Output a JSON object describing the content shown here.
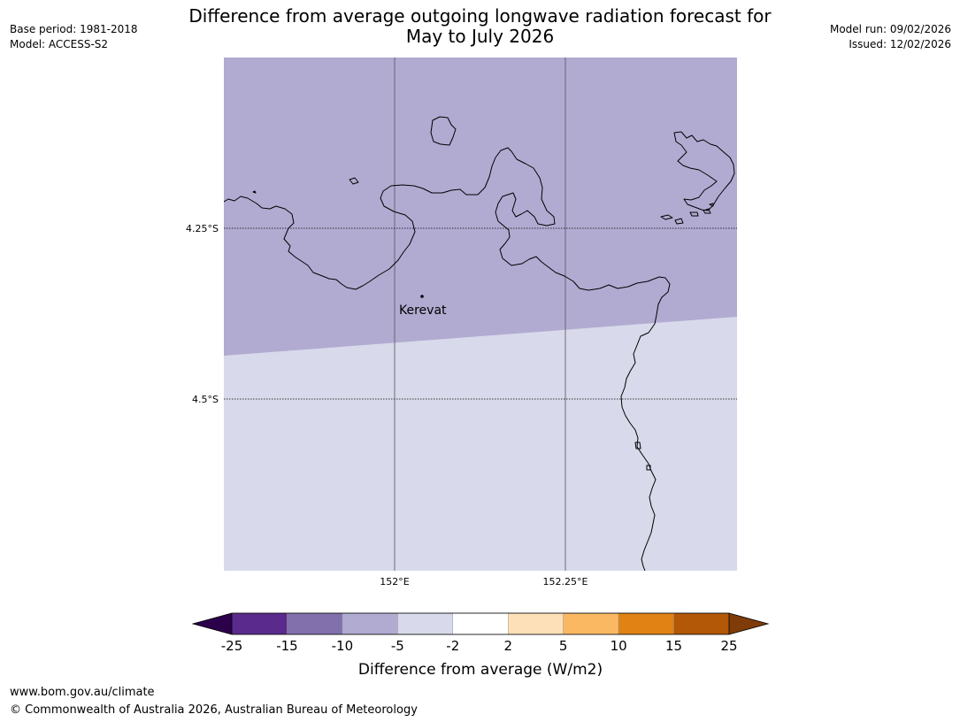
{
  "header": {
    "base_period": "Base period: 1981-2018",
    "model": "Model: ACCESS-S2",
    "model_run": "Model run: 09/02/2026",
    "issued": "Issued: 12/02/2026",
    "title_line1": "Difference from average outgoing longwave radiation forecast for",
    "title_line2": "May to July 2026"
  },
  "map": {
    "lat_labels": [
      "4.25°S",
      "4.5°S"
    ],
    "lon_labels": [
      "152°E",
      "152.25°E"
    ],
    "place": {
      "name": "Kerevat"
    },
    "category_colors": {
      "north": "#b1abd2",
      "south": "#d8d9ea"
    },
    "north_category_range": "-10 to -5",
    "south_category_range": "-5 to -2"
  },
  "colorbar": {
    "label": "Difference from average (W/m2)",
    "ticks": [
      "-25",
      "-15",
      "-10",
      "-5",
      "-2",
      "2",
      "5",
      "10",
      "15",
      "25"
    ],
    "colors": [
      "#5a2a8c",
      "#8270ad",
      "#b1abd2",
      "#d8d9ea",
      "#ffffff",
      "#fde0b7",
      "#fbb863",
      "#e08214",
      "#b35806"
    ],
    "extend_low_color": "#2d004b",
    "extend_high_color": "#7f3b08"
  },
  "footer": {
    "url": "www.bom.gov.au/climate",
    "copyright": "© Commonwealth of Australia 2026, Australian Bureau of Meteorology"
  }
}
